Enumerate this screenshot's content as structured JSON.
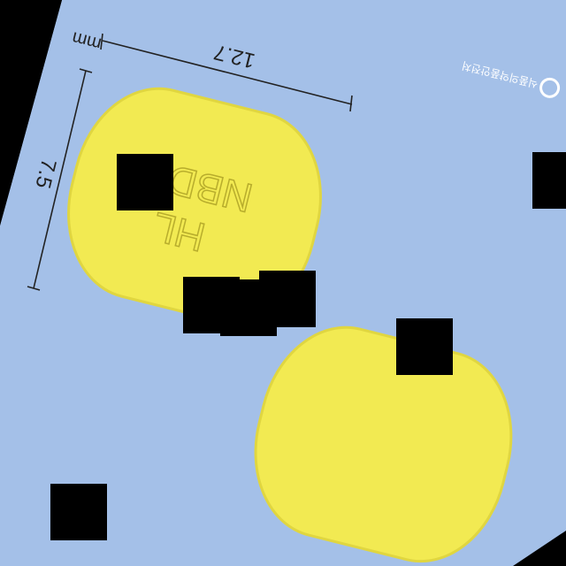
{
  "image": {
    "background_color": "#a4c0e8",
    "pill_color": "#f2ea52",
    "pill_edge_color": "#d9cf3a",
    "mask_color": "#000000"
  },
  "measurements": {
    "unit_label": "mm",
    "length_label": "12.7",
    "width_label": "7.5"
  },
  "pill_front": {
    "imprint_line1": "NBD",
    "imprint_line2": "HL"
  },
  "watermark": {
    "text": "식품의약품안전처",
    "logo_icon": "mfds-logo-icon"
  }
}
